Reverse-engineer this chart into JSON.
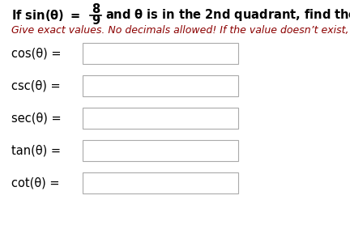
{
  "bg_color": "#ffffff",
  "text_color": "#000000",
  "bold_color": "#000000",
  "italic_color": "#8B0000",
  "box_edge_color": "#aaaaaa",
  "title_fontsize": 10.5,
  "subtitle_fontsize": 9.0,
  "field_fontsize": 10.5,
  "fields": [
    "cos(θ) =",
    "csc(θ) =",
    "sec(θ) =",
    "tan(θ) =",
    "cot(θ) ="
  ],
  "subtitle": "Give exact values. No decimals allowed! If the value doesn’t exist, type DNE.",
  "fraction_num": "8",
  "fraction_den": "9"
}
